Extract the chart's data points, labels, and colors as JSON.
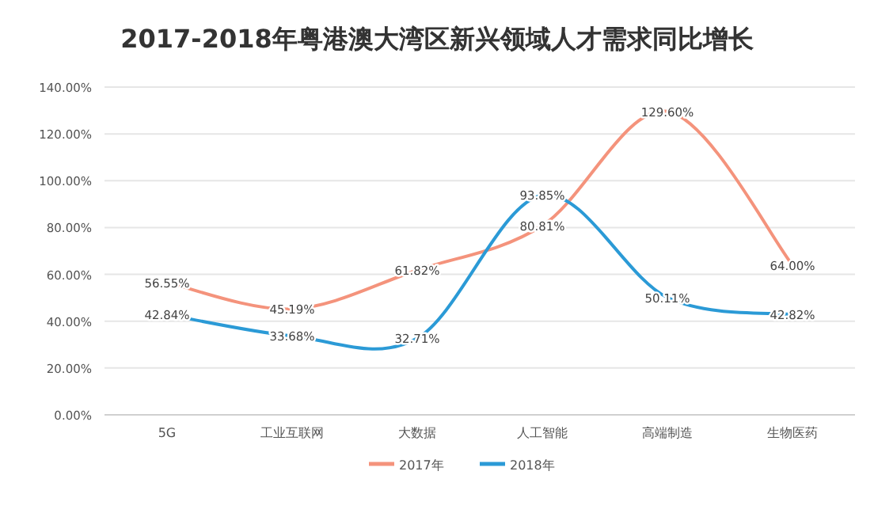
{
  "chart_data": {
    "type": "line",
    "title": "2017-2018年粤港澳大湾区新兴领域人才需求同比增长",
    "categories": [
      "5G",
      "工业互联网",
      "大数据",
      "人工智能",
      "高端制造",
      "生物医药"
    ],
    "series": [
      {
        "name": "2017年",
        "color": "#f4937c",
        "values": [
          56.55,
          45.19,
          61.82,
          80.81,
          129.6,
          64.0
        ],
        "value_labels": [
          "56.55%",
          "45.19%",
          "61.82%",
          "80.81%",
          "129.60%",
          "64.00%"
        ]
      },
      {
        "name": "2018年",
        "color": "#2b9ad6",
        "values": [
          42.84,
          33.68,
          32.71,
          93.85,
          50.11,
          42.82
        ],
        "value_labels": [
          "42.84%",
          "33.68%",
          "32.71%",
          "93.85%",
          "50.11%",
          "42.82%"
        ]
      }
    ],
    "ylim": [
      0,
      140
    ],
    "yticks": [
      {
        "value": 0,
        "label": "0.00%"
      },
      {
        "value": 20,
        "label": "20.00%"
      },
      {
        "value": 40,
        "label": "40.00%"
      },
      {
        "value": 60,
        "label": "60.00%"
      },
      {
        "value": 80,
        "label": "80.00%"
      },
      {
        "value": 100,
        "label": "100.00%"
      },
      {
        "value": 120,
        "label": "120.00%"
      },
      {
        "value": 140,
        "label": "140.00%"
      }
    ],
    "grid": "y",
    "legend": "bottom"
  }
}
